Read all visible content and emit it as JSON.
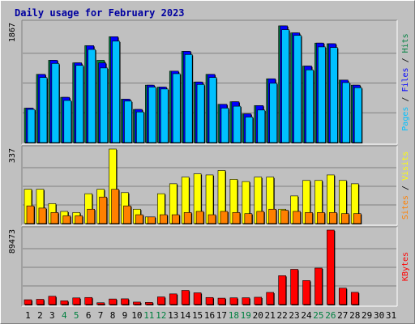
{
  "chart_data": {
    "type": "bar",
    "title": "Daily usage for February 2023",
    "days": [
      "1",
      "2",
      "3",
      "4",
      "5",
      "6",
      "7",
      "8",
      "9",
      "10",
      "11",
      "12",
      "13",
      "14",
      "15",
      "16",
      "17",
      "18",
      "19",
      "20",
      "21",
      "22",
      "23",
      "24",
      "25",
      "26",
      "27",
      "28",
      "29",
      "30",
      "31"
    ],
    "weekend_days": [
      "4",
      "5",
      "11",
      "12",
      "18",
      "19",
      "25",
      "26"
    ],
    "panels": [
      {
        "name": "hits-files-pages",
        "max_label": "1867",
        "max": 1867,
        "right_label_parts": [
          {
            "text": "Pages",
            "color": "#00c0ff"
          },
          {
            "text": " / ",
            "color": "#000000"
          },
          {
            "text": "Files",
            "color": "#0000ff"
          },
          {
            "text": " / ",
            "color": "#000000"
          },
          {
            "text": "Hits",
            "color": "#008040"
          }
        ],
        "series": [
          {
            "name": "Hits",
            "color": "#008040",
            "values": [
              540,
              1070,
              1290,
              710,
              1250,
              1520,
              1290,
              1660,
              680,
              520,
              900,
              870,
              1120,
              1430,
              950,
              1070,
              600,
              640,
              450,
              580,
              1000,
              1830,
              1720,
              1200,
              1560,
              1550,
              980,
              900,
              null,
              null,
              null
            ]
          },
          {
            "name": "Files",
            "color": "#0000ff",
            "values": [
              540,
              1070,
              1290,
              710,
              1250,
              1520,
              1250,
              1660,
              680,
              520,
              900,
              870,
              1120,
              1430,
              950,
              1070,
              600,
              640,
              450,
              580,
              1000,
              1830,
              1720,
              1200,
              1560,
              1550,
              980,
              900,
              null,
              null,
              null
            ]
          },
          {
            "name": "Pages",
            "color": "#00c0ff",
            "values": [
              520,
              1020,
              1240,
              660,
              1210,
              1460,
              1170,
              1590,
              650,
              480,
              870,
              840,
              1080,
              1380,
              910,
              1020,
              540,
              570,
              400,
              510,
              930,
              1770,
              1680,
              1140,
              1500,
              1490,
              940,
              860,
              null,
              null,
              null
            ]
          }
        ]
      },
      {
        "name": "visits-sites",
        "max_label": "337",
        "max": 337,
        "right_label_parts": [
          {
            "text": "Sites",
            "color": "#ff8000"
          },
          {
            "text": " / ",
            "color": "#000000"
          },
          {
            "text": "Visits",
            "color": "#ffff00"
          }
        ],
        "series": [
          {
            "name": "Visits",
            "color": "#ffff00",
            "values": [
              155,
              155,
              90,
              55,
              50,
              135,
              155,
              337,
              140,
              65,
              30,
              135,
              180,
              210,
              225,
              220,
              240,
              200,
              190,
              210,
              210,
              65,
              125,
              195,
              195,
              220,
              195,
              180,
              null,
              null,
              null
            ]
          },
          {
            "name": "Sites",
            "color": "#ff8000",
            "values": [
              80,
              70,
              50,
              35,
              35,
              65,
              120,
              155,
              80,
              40,
              30,
              40,
              40,
              50,
              55,
              40,
              55,
              50,
              45,
              55,
              65,
              60,
              55,
              50,
              50,
              50,
              45,
              45,
              null,
              null,
              null
            ]
          }
        ]
      },
      {
        "name": "kbytes",
        "max_label": "89473",
        "max": 89473,
        "right_label_parts": [
          {
            "text": "KBytes",
            "color": "#ff0000"
          }
        ],
        "series": [
          {
            "name": "KBytes",
            "color": "#ff0000",
            "values": [
              5800,
              6300,
              10000,
              4500,
              8000,
              8500,
              2200,
              6700,
              6900,
              3000,
              2600,
              9200,
              12800,
              17000,
              14100,
              8500,
              7700,
              8100,
              8200,
              8800,
              14600,
              34700,
              42300,
              28800,
              43800,
              89473,
              19800,
              14700,
              null,
              null,
              null
            ]
          }
        ]
      }
    ]
  }
}
